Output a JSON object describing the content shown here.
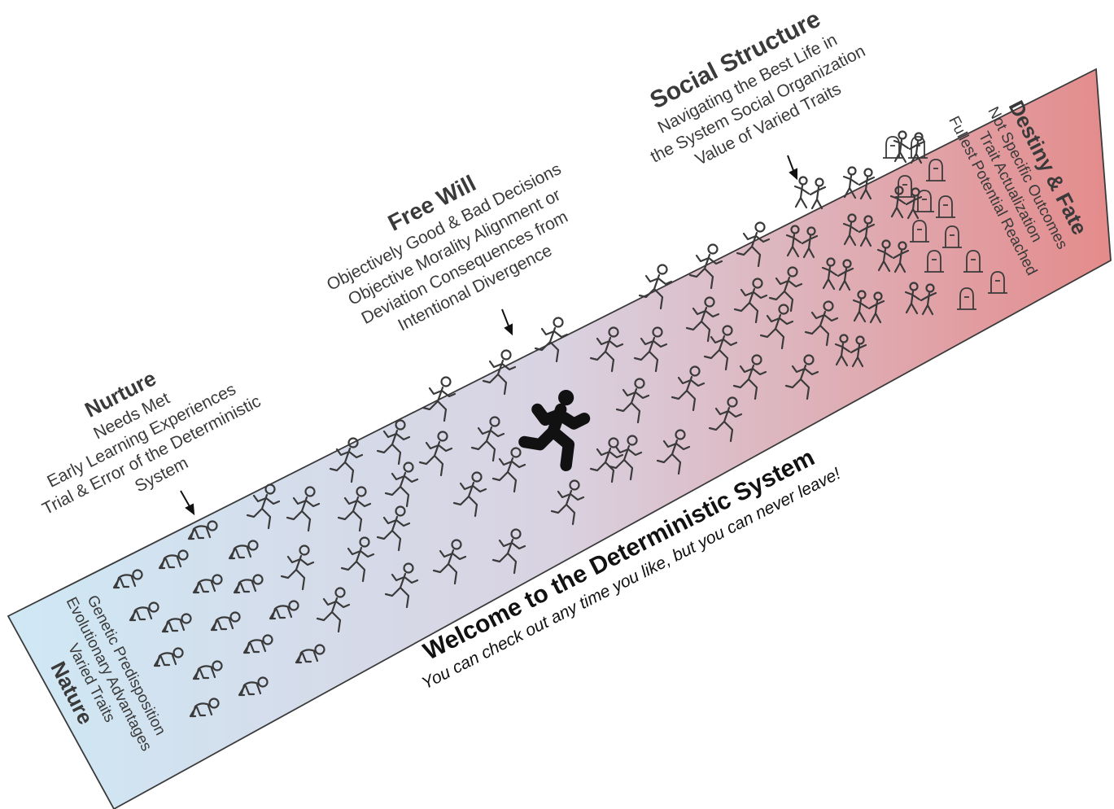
{
  "band": {
    "start_color": "#cfe8f5",
    "mid_color": "#d9d2e1",
    "end_color": "#e48b8b",
    "border_color": "#3a3a3a"
  },
  "nature": {
    "title": "Nature",
    "lines": [
      "Genetic Predisposition",
      "Evolutionary Advantages",
      "Varied Traits"
    ]
  },
  "nurture": {
    "title": "Nurture",
    "lines": [
      "Needs Met",
      "Early Learning Experiences",
      "Trial & Error of the Deterministic",
      "System"
    ]
  },
  "free_will": {
    "title": "Free Will",
    "lines": [
      "Objectively Good & Bad Decisions",
      "Objective Morality Alignment or",
      "Deviation Consequences from",
      "Intentional Divergence"
    ]
  },
  "social_structure": {
    "title": "Social Structure",
    "lines": [
      "Navigating the Best Life in",
      "the System Social Organization",
      "Value of Varied Traits"
    ]
  },
  "destiny": {
    "title": "Destiny & Fate",
    "lines": [
      "Not Specific Outcomes",
      "Trait Actualization",
      "Fullest Potential Reached"
    ]
  },
  "welcome": {
    "title": "Welcome to the Deterministic System",
    "subtitle": "You can check out any time you like, but you can never leave!"
  },
  "icons": {
    "crawler": "crawling-baby-icon",
    "runner": "running-person-icon",
    "group": "group-of-people-icon",
    "grave": "tombstone-icon",
    "arrow": "arrow-down-icon"
  }
}
